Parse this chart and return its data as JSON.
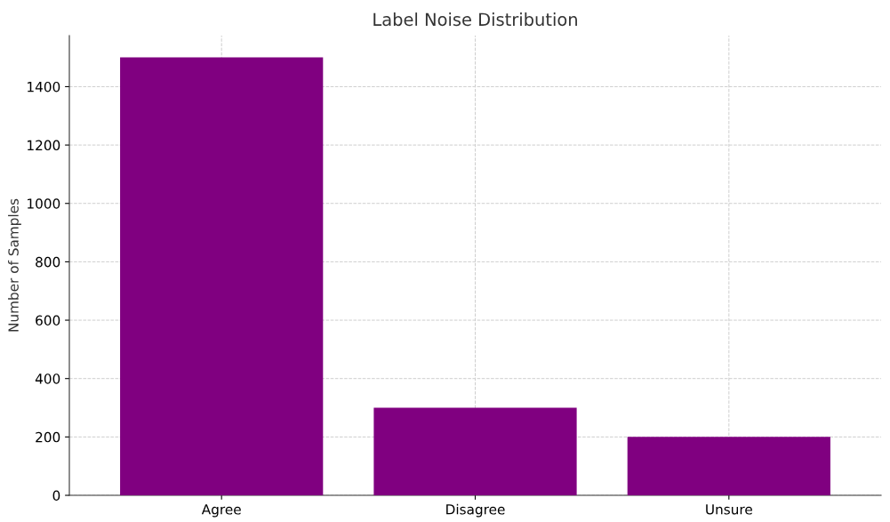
{
  "chart_data": {
    "type": "bar",
    "title": "Label Noise Distribution",
    "ylabel": "Number of Samples",
    "categories": [
      "Agree",
      "Disagree",
      "Unsure"
    ],
    "values": [
      1500,
      300,
      200
    ],
    "color": "#800080",
    "ylim": [
      0,
      1575
    ],
    "yticks": [
      0,
      200,
      400,
      600,
      800,
      1000,
      1200,
      1400
    ],
    "grid": true,
    "line_style": "dashed"
  }
}
